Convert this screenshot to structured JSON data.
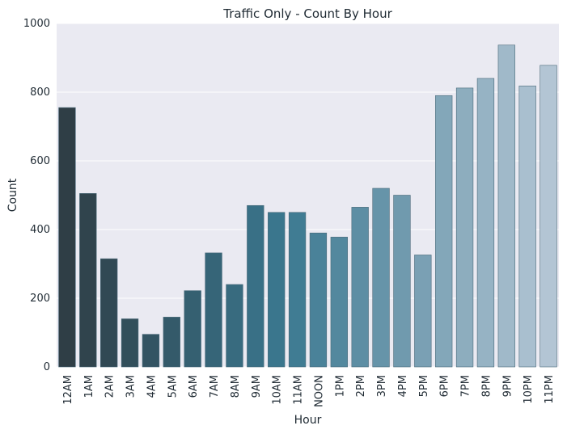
{
  "chart_data": {
    "type": "bar",
    "title": "Traffic Only - Count By Hour",
    "xlabel": "Hour",
    "ylabel": "Count",
    "ylim": [
      0,
      1000
    ],
    "yticks": [
      "0",
      "200",
      "400",
      "600",
      "800",
      "1000"
    ],
    "categories": [
      "12AM",
      "1AM",
      "2AM",
      "3AM",
      "4AM",
      "5AM",
      "6AM",
      "7AM",
      "8AM",
      "9AM",
      "10AM",
      "11AM",
      "NOON",
      "1PM",
      "2PM",
      "3PM",
      "4PM",
      "5PM",
      "6PM",
      "7PM",
      "8PM",
      "9PM",
      "10PM",
      "11PM"
    ],
    "values": [
      755,
      505,
      315,
      140,
      95,
      145,
      222,
      332,
      240,
      470,
      450,
      450,
      390,
      378,
      465,
      520,
      500,
      326,
      790,
      812,
      840,
      937,
      818,
      878
    ],
    "grid": true,
    "colors": {
      "background": "#eaeaf2",
      "grid": "#ffffff",
      "palette_start": "#2f3e46",
      "palette_mid": "#3a7890",
      "palette_end": "#b3c5d4"
    }
  }
}
